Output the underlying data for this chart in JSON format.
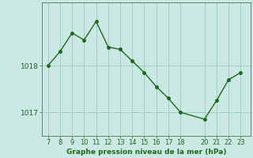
{
  "x": [
    7,
    8,
    9,
    10,
    11,
    12,
    13,
    14,
    15,
    16,
    17,
    18,
    20,
    21,
    22,
    23
  ],
  "y": [
    1018.0,
    1018.3,
    1018.7,
    1018.55,
    1018.95,
    1018.4,
    1018.35,
    1018.1,
    1017.85,
    1017.55,
    1017.3,
    1017.0,
    1016.85,
    1017.25,
    1017.7,
    1017.85
  ],
  "line_color": "#1a6b1a",
  "marker": "o",
  "bg_color": "#cce8e4",
  "grid_color": "#9ecdc7",
  "xlabel": "Graphe pression niveau de la mer (hPa)",
  "xlabel_color": "#1a6b1a",
  "yticks": [
    1017,
    1018
  ],
  "xticks": [
    7,
    8,
    9,
    10,
    11,
    12,
    13,
    14,
    15,
    16,
    17,
    18,
    20,
    21,
    22,
    23
  ],
  "ylim": [
    1016.5,
    1019.35
  ],
  "xlim": [
    6.5,
    23.8
  ]
}
